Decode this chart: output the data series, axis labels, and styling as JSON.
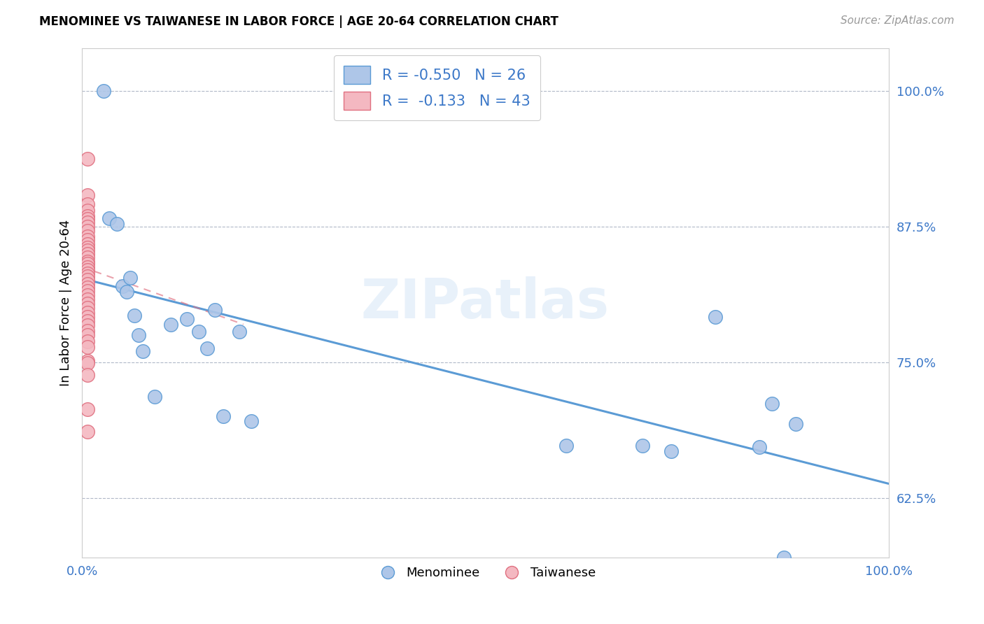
{
  "title": "MENOMINEE VS TAIWANESE IN LABOR FORCE | AGE 20-64 CORRELATION CHART",
  "source": "Source: ZipAtlas.com",
  "ylabel": "In Labor Force | Age 20-64",
  "xlim": [
    0.0,
    1.0
  ],
  "ylim": [
    0.57,
    1.04
  ],
  "y_tick_values": [
    0.625,
    0.75,
    0.875,
    1.0
  ],
  "menominee_color": "#aec6e8",
  "menominee_edge_color": "#5b9bd5",
  "taiwanese_color": "#f4b8c1",
  "taiwanese_edge_color": "#e07080",
  "menominee_R": -0.55,
  "menominee_N": 26,
  "taiwanese_R": -0.133,
  "taiwanese_N": 43,
  "menominee_x": [
    0.027,
    0.034,
    0.043,
    0.05,
    0.055,
    0.06,
    0.065,
    0.07,
    0.075,
    0.09,
    0.11,
    0.13,
    0.145,
    0.155,
    0.165,
    0.175,
    0.195,
    0.21,
    0.6,
    0.695,
    0.73,
    0.785,
    0.84,
    0.855,
    0.87,
    0.885
  ],
  "menominee_y": [
    1.0,
    0.883,
    0.878,
    0.82,
    0.815,
    0.828,
    0.793,
    0.775,
    0.76,
    0.718,
    0.785,
    0.79,
    0.778,
    0.763,
    0.798,
    0.7,
    0.778,
    0.696,
    0.673,
    0.673,
    0.668,
    0.792,
    0.672,
    0.712,
    0.57,
    0.693
  ],
  "taiwanese_x": [
    0.007,
    0.007,
    0.007,
    0.007,
    0.007,
    0.007,
    0.007,
    0.007,
    0.007,
    0.007,
    0.007,
    0.007,
    0.007,
    0.007,
    0.007,
    0.007,
    0.007,
    0.007,
    0.007,
    0.007,
    0.007,
    0.007,
    0.007,
    0.007,
    0.007,
    0.007,
    0.007,
    0.007,
    0.007,
    0.007,
    0.007,
    0.007,
    0.007,
    0.007,
    0.007,
    0.007,
    0.007,
    0.007,
    0.007,
    0.007,
    0.007,
    0.007,
    0.007
  ],
  "taiwanese_y": [
    0.938,
    0.904,
    0.896,
    0.89,
    0.885,
    0.882,
    0.879,
    0.875,
    0.871,
    0.866,
    0.863,
    0.859,
    0.856,
    0.853,
    0.85,
    0.847,
    0.843,
    0.841,
    0.838,
    0.835,
    0.832,
    0.829,
    0.826,
    0.822,
    0.819,
    0.816,
    0.812,
    0.808,
    0.804,
    0.8,
    0.796,
    0.792,
    0.788,
    0.784,
    0.779,
    0.775,
    0.769,
    0.764,
    0.751,
    0.749,
    0.738,
    0.707,
    0.686
  ],
  "men_line_x": [
    0.007,
    1.0
  ],
  "men_line_y": [
    0.826,
    0.638
  ],
  "tai_line_x": [
    0.0,
    0.2
  ],
  "tai_line_y": [
    0.838,
    0.785
  ],
  "watermark": "ZIPatlas",
  "background_color": "#ffffff",
  "grid_color": "#b0b8c8"
}
